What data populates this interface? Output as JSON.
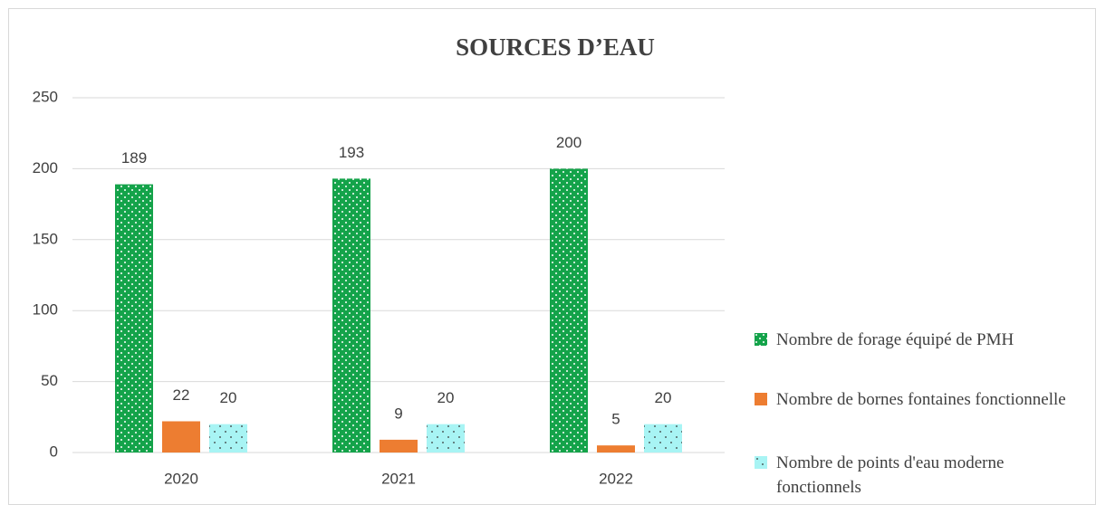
{
  "chart_data": {
    "type": "bar",
    "title": "SOURCES D’EAU",
    "categories": [
      "2020",
      "2021",
      "2022"
    ],
    "series": [
      {
        "name": "Nombre de forage équipé de PMH",
        "color": "#14a34a",
        "pattern": "dots",
        "values": [
          189,
          193,
          200
        ]
      },
      {
        "name": "Nombre de bornes fontaines fonctionnelle",
        "color": "#ed7d31",
        "values": [
          22,
          9,
          5
        ]
      },
      {
        "name": "Nombre de points d'eau moderne fonctionnels",
        "color": "#a8f4f4",
        "pattern": "dots",
        "values": [
          20,
          20,
          20
        ]
      }
    ],
    "ylim": [
      0,
      250
    ],
    "yticks": [
      0,
      50,
      100,
      150,
      200,
      250
    ],
    "grid": true,
    "legend": "right"
  }
}
